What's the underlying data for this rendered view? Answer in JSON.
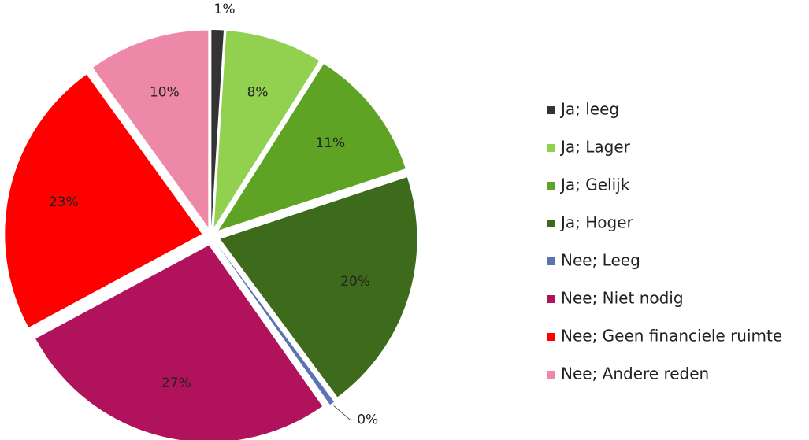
{
  "chart_data": {
    "type": "pie",
    "categories": [
      "Ja; leeg",
      "Ja; Lager",
      "Ja; Gelijk",
      "Ja; Hoger",
      "Nee; Leeg",
      "Nee; Niet nodig",
      "Nee; Geen financiele ruimte",
      "Nee; Andere reden"
    ],
    "values": [
      1,
      8,
      11,
      20,
      0.4,
      27,
      23,
      10
    ],
    "value_labels": [
      "1%",
      "8%",
      "11%",
      "20%",
      "0%",
      "27%",
      "23%",
      "10%"
    ],
    "colors": [
      "#333333",
      "#92d050",
      "#5fa324",
      "#3d6b1b",
      "#5b73b5",
      "#b0125b",
      "#ff0000",
      "#ee88a8"
    ],
    "legend": "right"
  }
}
